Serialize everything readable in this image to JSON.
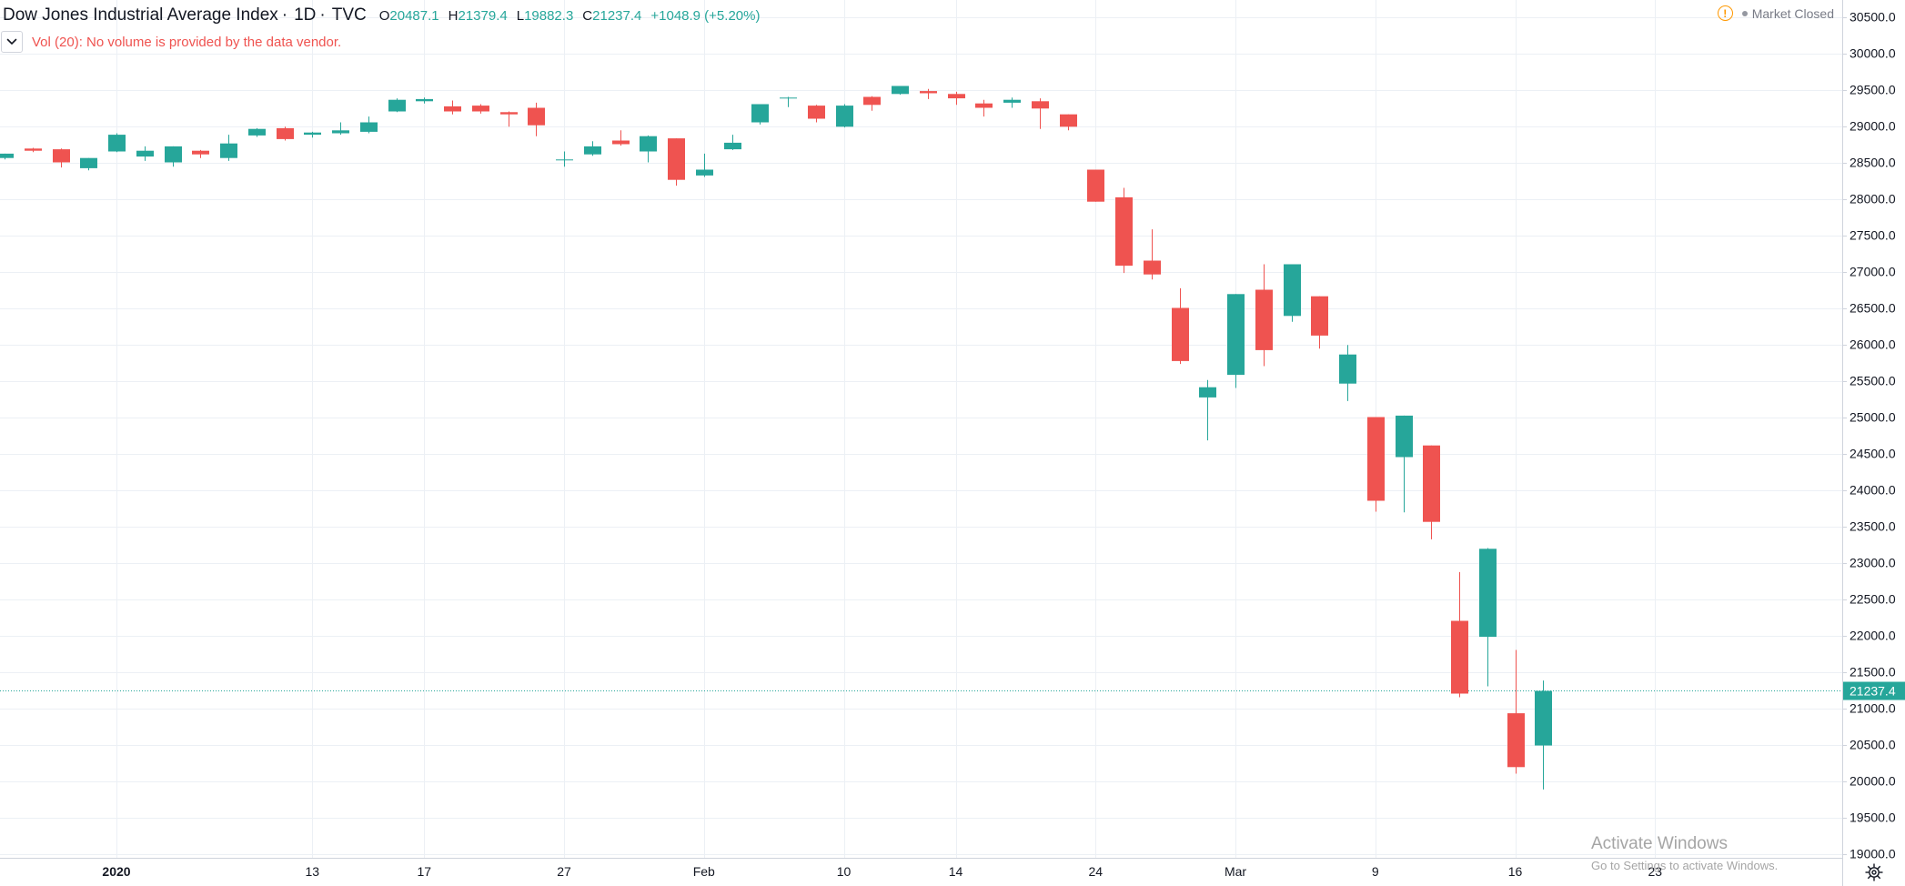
{
  "header": {
    "title": "Dow Jones Industrial Average Index",
    "interval": "1D",
    "exchange": "TVC",
    "ohlc": {
      "o_label": "O",
      "o": "20487.1",
      "h_label": "H",
      "h": "21379.4",
      "l_label": "L",
      "l": "19882.3",
      "c_label": "C",
      "c": "21237.4",
      "change": "+1048.9 (+5.20%)"
    }
  },
  "volume_notice": "Vol (20): No volume is provided by the data vendor.",
  "market_status": {
    "icon": "warning-circle-icon",
    "text": "Market Closed"
  },
  "overlay": {
    "title": "Activate Windows",
    "subtitle": "Go to Settings to activate Windows."
  },
  "colors": {
    "up": "#26a69a",
    "down": "#ef5350",
    "grid": "#ecf0f5",
    "price_line": "#26a69a",
    "axis_text": "#131722"
  },
  "chart_data": {
    "type": "candlestick",
    "title": "Dow Jones Industrial Average Index",
    "ylim": [
      19000,
      30500
    ],
    "y_ticks": [
      "30500.0",
      "30000.0",
      "29500.0",
      "29000.0",
      "28500.0",
      "28000.0",
      "27500.0",
      "27000.0",
      "26500.0",
      "26000.0",
      "25500.0",
      "25000.0",
      "24500.0",
      "24000.0",
      "23500.0",
      "23000.0",
      "22500.0",
      "22000.0",
      "21500.0",
      "21000.0",
      "20500.0",
      "20000.0",
      "19500.0",
      "19000.0"
    ],
    "x_ticks": [
      {
        "label": "2020",
        "bold": true,
        "index": 4
      },
      {
        "label": "13",
        "index": 11
      },
      {
        "label": "17",
        "index": 15
      },
      {
        "label": "27",
        "index": 20
      },
      {
        "label": "Feb",
        "index": 25
      },
      {
        "label": "10",
        "index": 30
      },
      {
        "label": "14",
        "index": 34
      },
      {
        "label": "24",
        "index": 39
      },
      {
        "label": "Mar",
        "index": 44
      },
      {
        "label": "9",
        "index": 49
      },
      {
        "label": "16",
        "index": 54
      },
      {
        "label": "23",
        "index": 59
      }
    ],
    "last_price": "21237.4",
    "candles": [
      {
        "o": 28560,
        "h": 28620,
        "l": 28540,
        "c": 28620
      },
      {
        "o": 28690,
        "h": 28700,
        "l": 28640,
        "c": 28660
      },
      {
        "o": 28680,
        "h": 28690,
        "l": 28430,
        "c": 28500
      },
      {
        "o": 28420,
        "h": 28560,
        "l": 28390,
        "c": 28560
      },
      {
        "o": 28650,
        "h": 28900,
        "l": 28640,
        "c": 28880
      },
      {
        "o": 28580,
        "h": 28720,
        "l": 28520,
        "c": 28660
      },
      {
        "o": 28500,
        "h": 28720,
        "l": 28440,
        "c": 28720
      },
      {
        "o": 28660,
        "h": 28670,
        "l": 28560,
        "c": 28610
      },
      {
        "o": 28560,
        "h": 28880,
        "l": 28520,
        "c": 28760
      },
      {
        "o": 28870,
        "h": 28970,
        "l": 28850,
        "c": 28960
      },
      {
        "o": 28970,
        "h": 28990,
        "l": 28800,
        "c": 28820
      },
      {
        "o": 28880,
        "h": 28920,
        "l": 28840,
        "c": 28910
      },
      {
        "o": 28900,
        "h": 29050,
        "l": 28880,
        "c": 28940
      },
      {
        "o": 28920,
        "h": 29130,
        "l": 28900,
        "c": 29050
      },
      {
        "o": 29200,
        "h": 29380,
        "l": 29190,
        "c": 29360
      },
      {
        "o": 29340,
        "h": 29390,
        "l": 29310,
        "c": 29370
      },
      {
        "o": 29270,
        "h": 29350,
        "l": 29160,
        "c": 29200
      },
      {
        "o": 29280,
        "h": 29300,
        "l": 29170,
        "c": 29200
      },
      {
        "o": 29190,
        "h": 29200,
        "l": 28990,
        "c": 29160
      },
      {
        "o": 29250,
        "h": 29320,
        "l": 28860,
        "c": 29010
      },
      {
        "o": 28540,
        "h": 28650,
        "l": 28440,
        "c": 28540
      },
      {
        "o": 28610,
        "h": 28790,
        "l": 28590,
        "c": 28720
      },
      {
        "o": 28800,
        "h": 28940,
        "l": 28730,
        "c": 28750
      },
      {
        "o": 28650,
        "h": 28870,
        "l": 28500,
        "c": 28860
      },
      {
        "o": 28830,
        "h": 28830,
        "l": 28180,
        "c": 28260
      },
      {
        "o": 28320,
        "h": 28620,
        "l": 28300,
        "c": 28400
      },
      {
        "o": 28680,
        "h": 28880,
        "l": 28670,
        "c": 28770
      },
      {
        "o": 29050,
        "h": 29300,
        "l": 29020,
        "c": 29300
      },
      {
        "o": 29380,
        "h": 29400,
        "l": 29260,
        "c": 29390
      },
      {
        "o": 29280,
        "h": 29290,
        "l": 29050,
        "c": 29100
      },
      {
        "o": 28990,
        "h": 29300,
        "l": 28980,
        "c": 29280
      },
      {
        "o": 29400,
        "h": 29410,
        "l": 29210,
        "c": 29290
      },
      {
        "o": 29440,
        "h": 29550,
        "l": 29430,
        "c": 29550
      },
      {
        "o": 29480,
        "h": 29510,
        "l": 29370,
        "c": 29450
      },
      {
        "o": 29440,
        "h": 29470,
        "l": 29290,
        "c": 29380
      },
      {
        "o": 29310,
        "h": 29360,
        "l": 29130,
        "c": 29250
      },
      {
        "o": 29320,
        "h": 29390,
        "l": 29250,
        "c": 29360
      },
      {
        "o": 29340,
        "h": 29380,
        "l": 28960,
        "c": 29240
      },
      {
        "o": 29160,
        "h": 29160,
        "l": 28940,
        "c": 28990
      },
      {
        "o": 28400,
        "h": 28400,
        "l": 27960,
        "c": 27960
      },
      {
        "o": 28020,
        "h": 28150,
        "l": 26980,
        "c": 27080
      },
      {
        "o": 27150,
        "h": 27580,
        "l": 26890,
        "c": 26960
      },
      {
        "o": 26500,
        "h": 26770,
        "l": 25730,
        "c": 25770
      },
      {
        "o": 25270,
        "h": 25510,
        "l": 24680,
        "c": 25410
      },
      {
        "o": 25580,
        "h": 26690,
        "l": 25400,
        "c": 26690
      },
      {
        "o": 26750,
        "h": 27100,
        "l": 25700,
        "c": 25920
      },
      {
        "o": 26390,
        "h": 27100,
        "l": 26310,
        "c": 27100
      },
      {
        "o": 26660,
        "h": 26660,
        "l": 25940,
        "c": 26120
      },
      {
        "o": 25460,
        "h": 25990,
        "l": 25220,
        "c": 25860
      },
      {
        "o": 25000,
        "h": 25000,
        "l": 23700,
        "c": 23850
      },
      {
        "o": 24450,
        "h": 25020,
        "l": 23690,
        "c": 25020
      },
      {
        "o": 24610,
        "h": 24610,
        "l": 23320,
        "c": 23560
      },
      {
        "o": 22200,
        "h": 22870,
        "l": 21150,
        "c": 21200
      },
      {
        "o": 21980,
        "h": 23200,
        "l": 21300,
        "c": 23190
      },
      {
        "o": 20930,
        "h": 21800,
        "l": 20100,
        "c": 20190
      },
      {
        "o": 20487.1,
        "h": 21379.4,
        "l": 19882.3,
        "c": 21237.4
      }
    ]
  }
}
